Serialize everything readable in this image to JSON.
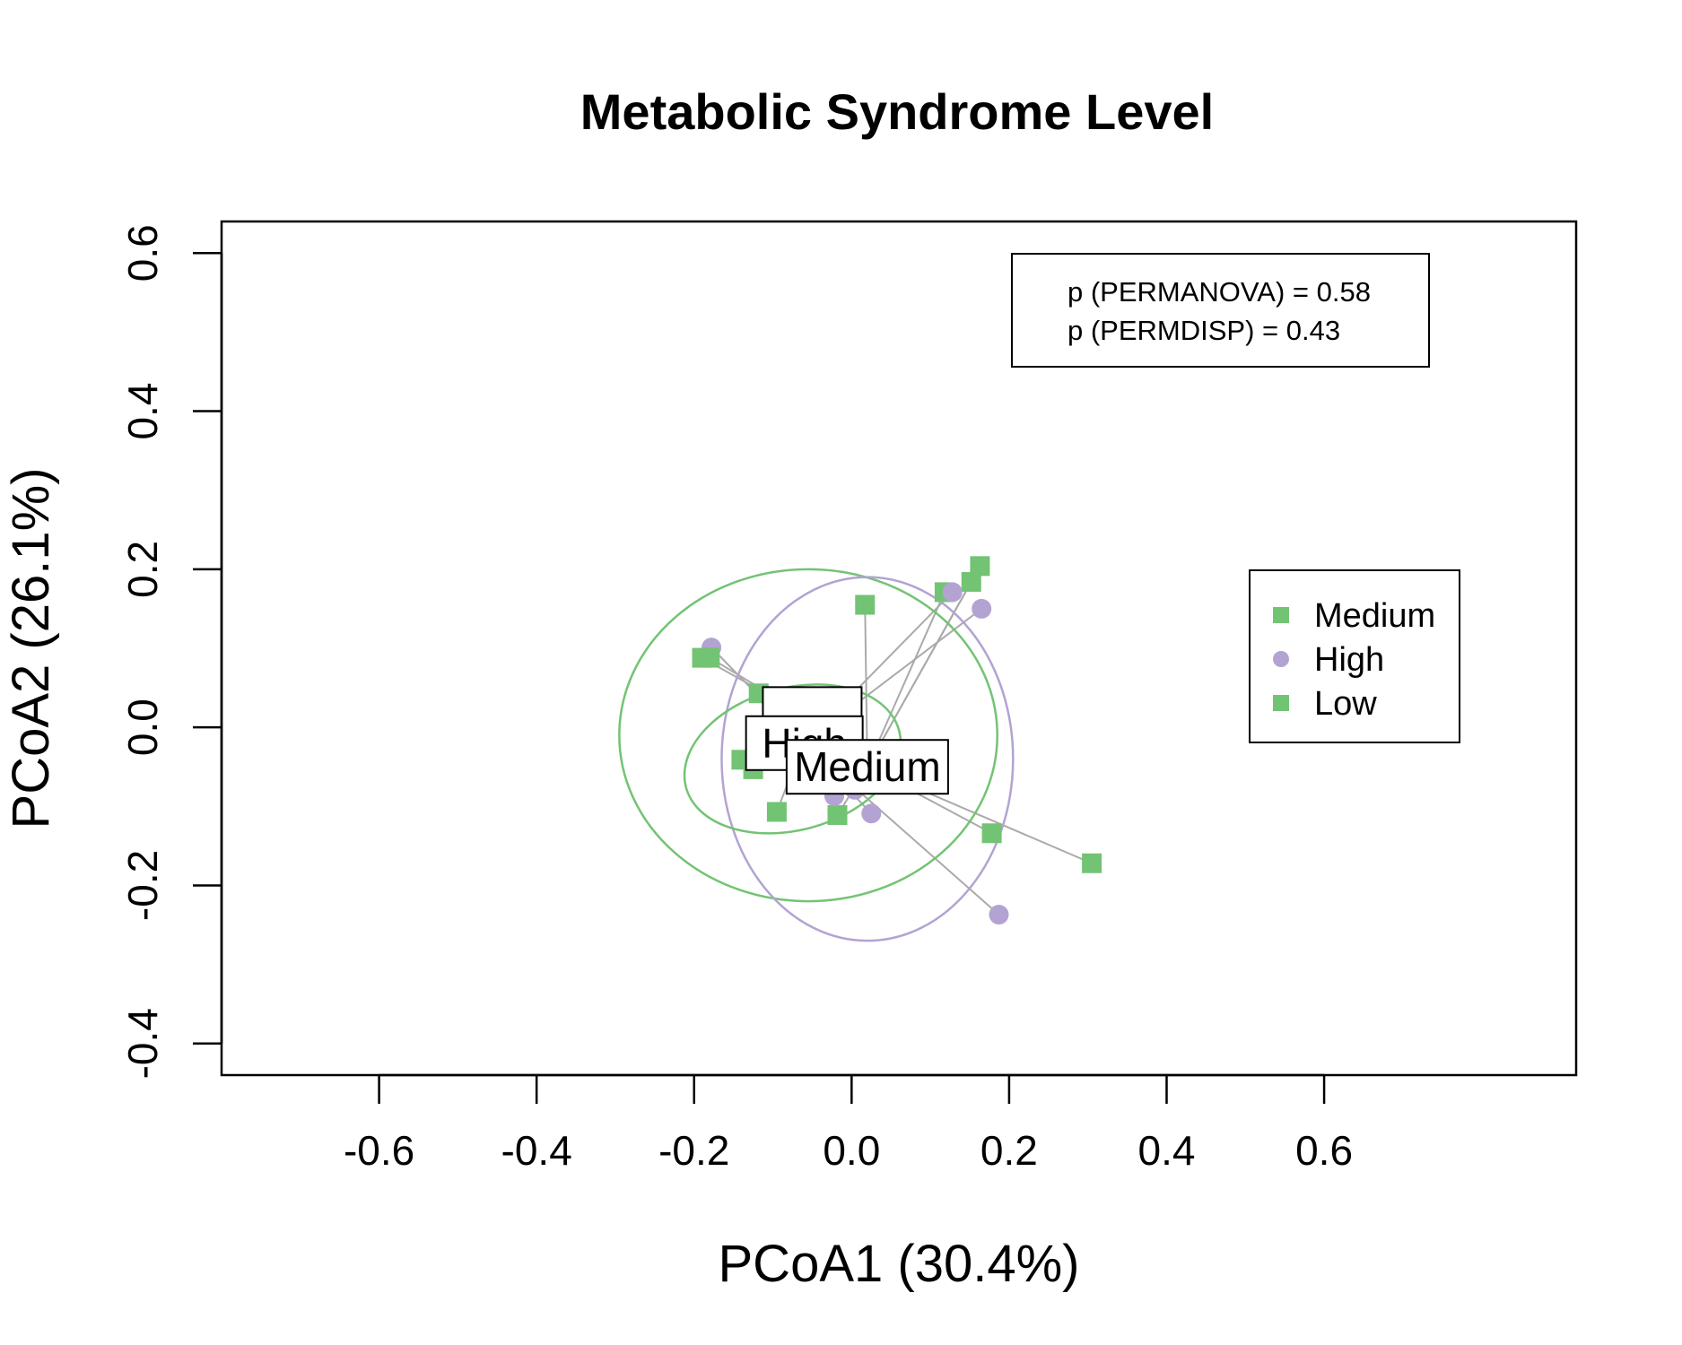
{
  "chart_data": {
    "type": "scatter",
    "title": "Metabolic Syndrome Level",
    "xlabel": "PCoA1 (30.4%)",
    "ylabel": "PCoA2 (26.1%)",
    "xlim": [
      -0.8,
      0.92
    ],
    "ylim": [
      -0.44,
      0.64
    ],
    "xticks": [
      -0.6,
      -0.4,
      -0.2,
      0.0,
      0.2,
      0.4,
      0.6
    ],
    "xtick_labels": [
      "-0.6",
      "-0.4",
      "-0.2",
      "0.0",
      "0.2",
      "0.4",
      "0.6"
    ],
    "yticks": [
      -0.4,
      -0.2,
      0.0,
      0.2,
      0.4,
      0.6
    ],
    "ytick_labels": [
      "-0.4",
      "-0.2",
      "0.0",
      "0.2",
      "0.4",
      "0.6"
    ],
    "grid": false,
    "legend_position": "right",
    "stats": [
      "p (PERMANOVA) = 0.58",
      "p (PERMDISP) = 0.43"
    ],
    "series": [
      {
        "name": "Medium",
        "marker": "square",
        "color": "#73c374",
        "centroid": [
          0.02,
          -0.05
        ],
        "centroid_label": "Medium",
        "points": [
          [
            0.305,
            -0.172
          ],
          [
            0.178,
            -0.134
          ],
          [
            0.163,
            0.204
          ],
          [
            0.152,
            0.184
          ],
          [
            0.118,
            0.171
          ],
          [
            0.017,
            0.155
          ],
          [
            -0.018,
            -0.111
          ]
        ],
        "ellipse": {
          "cx": -0.055,
          "cy": -0.01,
          "rx": 0.24,
          "ry": 0.21,
          "angle": 0
        }
      },
      {
        "name": "High",
        "marker": "circle",
        "color": "#b3a3d2",
        "centroid": [
          -0.06,
          -0.02
        ],
        "centroid_label": "High",
        "points": [
          [
            -0.178,
            0.101
          ],
          [
            0.128,
            0.171
          ],
          [
            0.165,
            0.15
          ],
          [
            0.187,
            -0.237
          ],
          [
            0.025,
            -0.109
          ],
          [
            -0.022,
            -0.087
          ],
          [
            0.004,
            -0.079
          ]
        ],
        "ellipse": {
          "cx": 0.02,
          "cy": -0.04,
          "rx": 0.185,
          "ry": 0.23,
          "angle": 0
        }
      },
      {
        "name": "Low",
        "marker": "square",
        "color": "#73c374",
        "centroid": [
          -0.05,
          0.01
        ],
        "centroid_label": "",
        "points": [
          [
            -0.19,
            0.088
          ],
          [
            -0.18,
            0.088
          ],
          [
            -0.118,
            0.043
          ],
          [
            -0.14,
            -0.041
          ],
          [
            -0.125,
            -0.053
          ],
          [
            -0.095,
            -0.107
          ],
          [
            -0.06,
            -0.015
          ]
        ],
        "ellipse": {
          "cx": -0.075,
          "cy": -0.04,
          "rx": 0.14,
          "ry": 0.09,
          "angle": -15
        }
      }
    ]
  }
}
